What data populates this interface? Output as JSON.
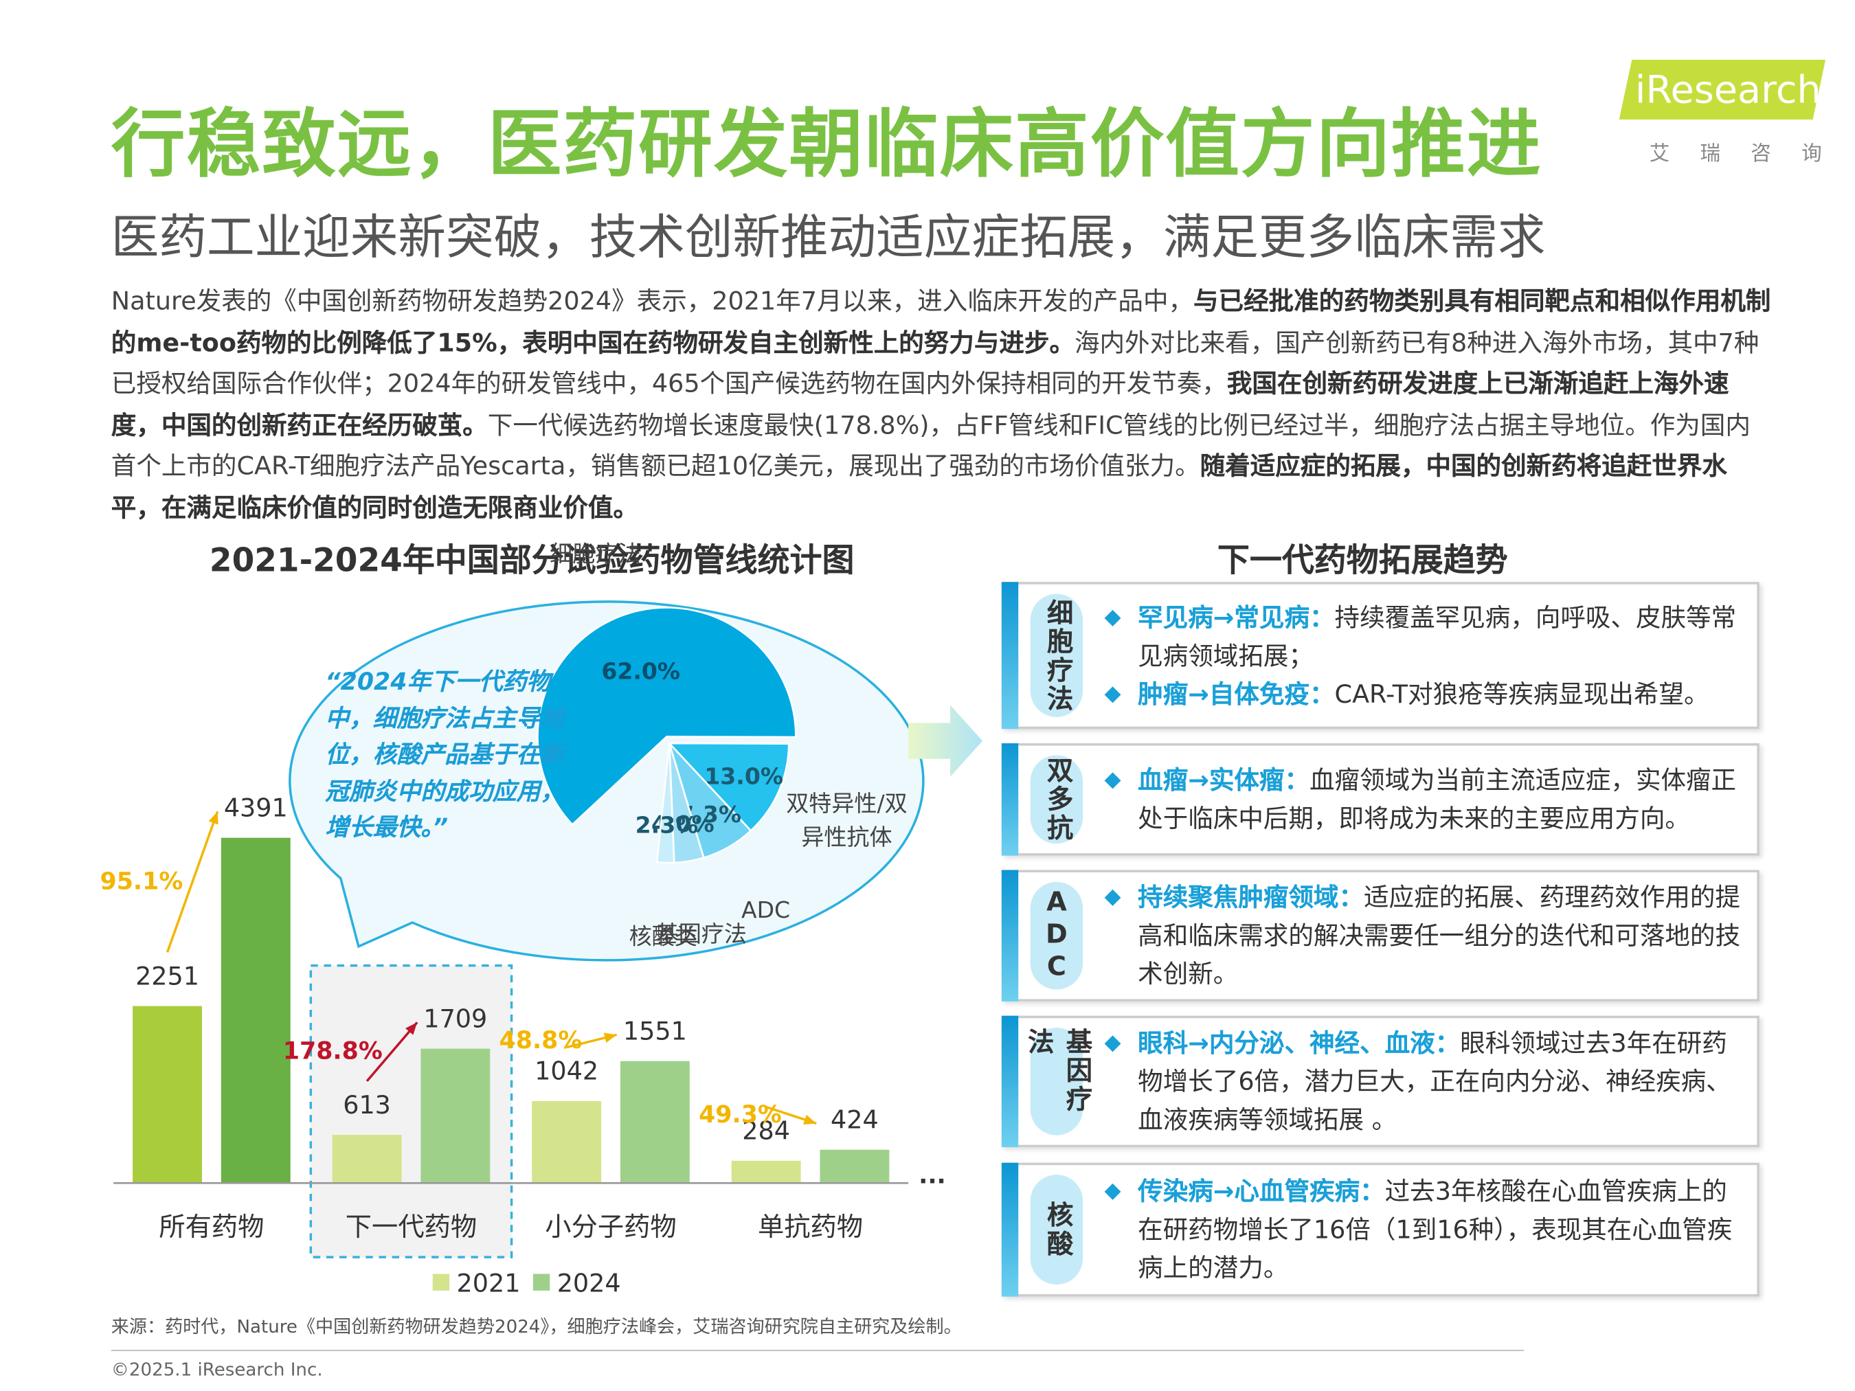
{
  "header": {
    "title": "行稳致远，医药研发朝临床高价值方向推进",
    "subtitle": "医药工业迎来新突破，技术创新推动适应症拓展，满足更多临床需求",
    "logo": "iResearch",
    "logo_sub": "艾 瑞 咨 询"
  },
  "intro": [
    {
      "text": "Nature发表的《中国创新药物研发趋势2024》表示，2021年7月以来，进入临床开发的产品中，",
      "bold": false
    },
    {
      "text": "与已经批准的药物类别具有相同靶点和相似作用机制的me-too药物的比例降低了15%，表明中国在药物研发自主创新性上的努力与进步。",
      "bold": true
    },
    {
      "text": "海内外对比来看，国产创新药已有8种进入海外市场，其中7种已授权给国际合作伙伴；2024年的研发管线中，465个国产候选药物在国内外保持相同的开发节奏，",
      "bold": false
    },
    {
      "text": "我国在创新药研发进度上已渐渐追赶上海外速度，中国的创新药正在经历破茧。",
      "bold": true
    },
    {
      "text": "下一代候选药物增长速度最快(178.8%)，占FF管线和FIC管线的比例已经过半，细胞疗法占据主导地位。作为国内首个上市的CAR-T细胞疗法产品Yescarta，销售额已超10亿美元，展现出了强劲的市场价值张力。",
      "bold": false
    },
    {
      "text": "随着适应症的拓展，中国的创新药将追赶世界水平，在满足临床价值的同时创造无限商业价值。",
      "bold": true
    }
  ],
  "chart_data": [
    {
      "type": "bar",
      "title": "2021-2024年中国部分试验药物管线统计图",
      "categories": [
        "所有药物",
        "下一代药物",
        "小分子药物",
        "单抗药物"
      ],
      "series": [
        {
          "name": "2021",
          "color": "#d3e48d",
          "colors": [
            "#a9cc3c",
            "#d3e48d",
            "#d3e48d",
            "#d3e48d"
          ],
          "values": [
            2251,
            613,
            1042,
            284
          ]
        },
        {
          "name": "2024",
          "color": "#9fd08a",
          "colors": [
            "#69b045",
            "#9fd08a",
            "#9fd08a",
            "#9fd08a"
          ],
          "values": [
            4391,
            1709,
            1551,
            424
          ]
        }
      ],
      "growth_labels": [
        "95.1%",
        "178.8%",
        "48.8%",
        "49.3%"
      ],
      "growth_colors": [
        "#f2b600",
        "#c0142b",
        "#f2b600",
        "#f2b600"
      ],
      "highlight": 1,
      "more": "...",
      "ylim": [
        0,
        5000
      ]
    },
    {
      "type": "pie",
      "quote": "“2024年下一代药物中，细胞疗法占主导地位，核酸产品基于在新冠肺炎中的成功应用，增长最快。”",
      "categories": [
        "细胞疗法",
        "双特异性/双异性抗体",
        "ADC",
        "基因疗法",
        "核酸类"
      ],
      "values": [
        62.0,
        13.0,
        7.3,
        4.0,
        2.3
      ],
      "value_labels": [
        "62.0%",
        "13.0%",
        "7.3%",
        "4.0%",
        "2.3%"
      ],
      "colors": [
        "#00a9e0",
        "#25c1ef",
        "#6ed3f3",
        "#a0e0f6",
        "#c8eefb"
      ]
    }
  ],
  "trends": {
    "title": "下一代药物拓展趋势",
    "items": [
      {
        "label": "细胞疗法",
        "points": [
          {
            "head": "罕见病→常见病：",
            "text": "持续覆盖罕见病，向呼吸、皮肤等常见病领域拓展；"
          },
          {
            "head": "肿瘤→自体免疫：",
            "text": "CAR-T对狼疮等疾病显现出希望。"
          }
        ]
      },
      {
        "label": "双多抗",
        "points": [
          {
            "head": "血瘤→实体瘤：",
            "text": "血瘤领域为当前主流适应症，实体瘤正处于临床中后期，即将成为未来的主要应用方向。"
          }
        ]
      },
      {
        "label": "ADC",
        "points": [
          {
            "head": "持续聚焦肿瘤领域：",
            "text": "适应症的拓展、药理药效作用的提高和临床需求的解决需要任一组分的迭代和可落地的技术创新。"
          }
        ]
      },
      {
        "label": "基因疗法",
        "points": [
          {
            "head": "眼科→内分泌、神经、血液：",
            "text": "眼科领域过去3年在研药物增长了6倍，潜力巨大，正在向内分泌、神经疾病、血液疾病等领域拓展 。"
          }
        ]
      },
      {
        "label": "核酸",
        "points": [
          {
            "head": "传染病→心血管疾病：",
            "text": "过去3年核酸在心血管疾病上的在研药物增长了16倍（1到16种），表现其在心血管疾病上的潜力。"
          }
        ]
      }
    ]
  },
  "footer": {
    "source": "来源：药时代，Nature《中国创新药物研发趋势2024》，细胞疗法峰会，艾瑞咨询研究院自主研究及绘制。",
    "copyright": "©2025.1 iResearch Inc."
  }
}
